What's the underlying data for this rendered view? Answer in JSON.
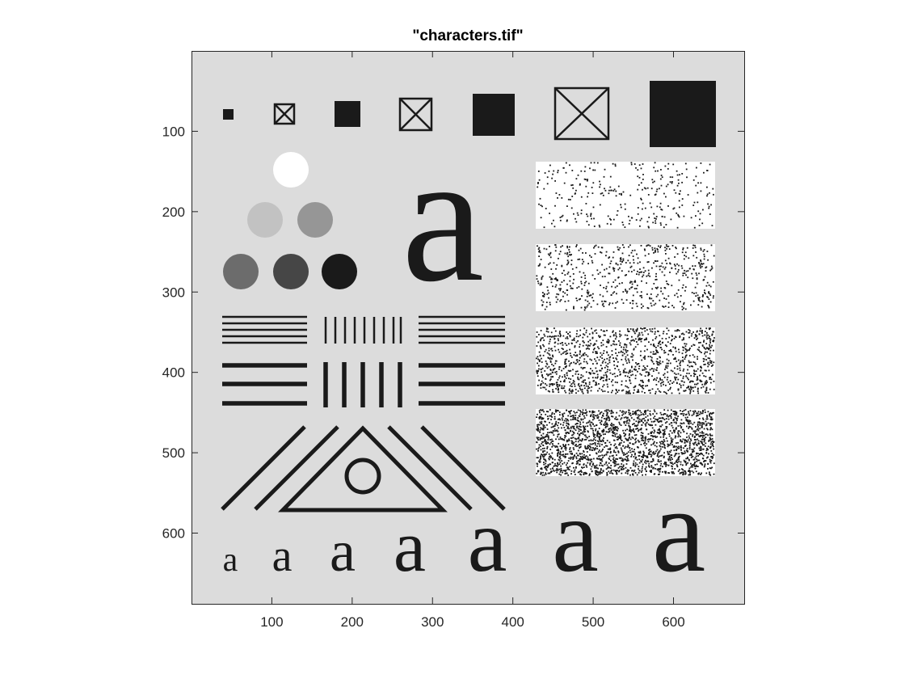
{
  "title": "\"characters.tif\"",
  "colors": {
    "axes_background": "#dcdcdc",
    "ink": "#1a1a1a",
    "white": "#ffffff",
    "gray_levels": [
      "#ffffff",
      "#c2c2c2",
      "#969696",
      "#6c6c6c",
      "#464646",
      "#1a1a1a"
    ]
  },
  "axes": {
    "x_ticks": [
      100,
      200,
      300,
      400,
      500,
      600
    ],
    "y_ticks": [
      100,
      200,
      300,
      400,
      500,
      600
    ],
    "x_range": [
      0,
      688
    ],
    "y_range": [
      688,
      0
    ],
    "x_tick_labels": [
      "100",
      "200",
      "300",
      "400",
      "500",
      "600"
    ],
    "y_tick_labels": [
      "100",
      "200",
      "300",
      "400",
      "500",
      "600"
    ]
  },
  "image": {
    "letter": "a",
    "noise_densities": [
      0.05,
      0.1,
      0.2,
      0.35
    ]
  }
}
